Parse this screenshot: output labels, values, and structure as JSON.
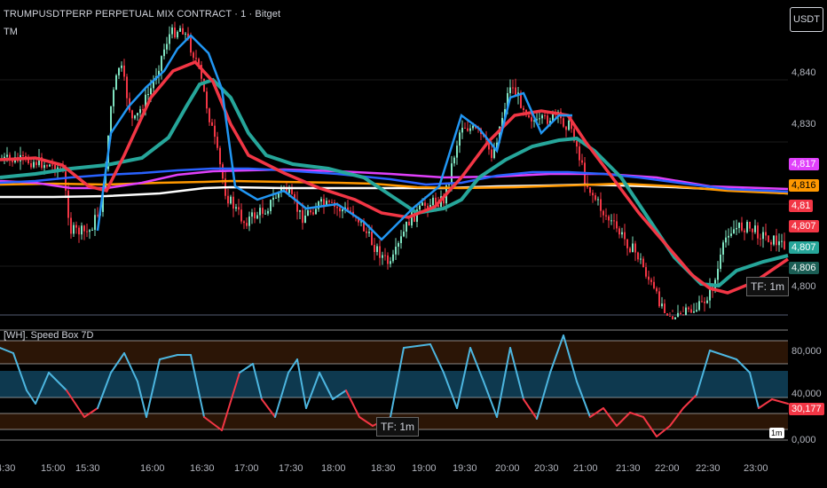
{
  "header": {
    "symbol_title": "TRUMPUSDTPERP PERPETUAL MIX CONTRACT · 1 · Bitget",
    "indicator_short": "TM",
    "currency_button": "USDT"
  },
  "indicator": {
    "title": "[WH]. Speed Box 7D",
    "tf_label": "TF: 1m",
    "interval_badge": "1m"
  },
  "price_panel": {
    "tf_label": "TF: 1m"
  },
  "price_scale": {
    "ticks": [
      "4,840",
      "4,830",
      "4,800"
    ]
  },
  "price_labels": [
    {
      "text": "4,817",
      "color": "#e040fb"
    },
    {
      "text": "4,816",
      "color": "#ff9800"
    },
    {
      "text": "4,81",
      "color": "#f23645"
    },
    {
      "text": "4,807",
      "color": "#f23645"
    },
    {
      "text": "4,807",
      "color": "#26a69a"
    },
    {
      "text": "4,806",
      "color": "#26a69a"
    }
  ],
  "osc_scale": {
    "ticks": [
      "80,000",
      "40,000",
      "0,000"
    ],
    "current": "30,177"
  },
  "time_axis": [
    "4:30",
    "15:00",
    "15:30",
    "16:00",
    "16:30",
    "17:00",
    "17:30",
    "18:00",
    "18:30",
    "19:00",
    "19:30",
    "20:00",
    "20:30",
    "21:00",
    "21:30",
    "22:00",
    "22:30",
    "23:00"
  ],
  "colors": {
    "bull": "#7fe3c0",
    "bear": "#f23645",
    "fast_ma": "#2196f3",
    "slow_ma": "#26a69a",
    "long_blue": "#2962ff",
    "long_pink": "#e040fb",
    "long_orange": "#ff9800",
    "long_white": "#ffffff",
    "osc_up": "#4db6e0",
    "osc_down": "#f23645"
  }
}
